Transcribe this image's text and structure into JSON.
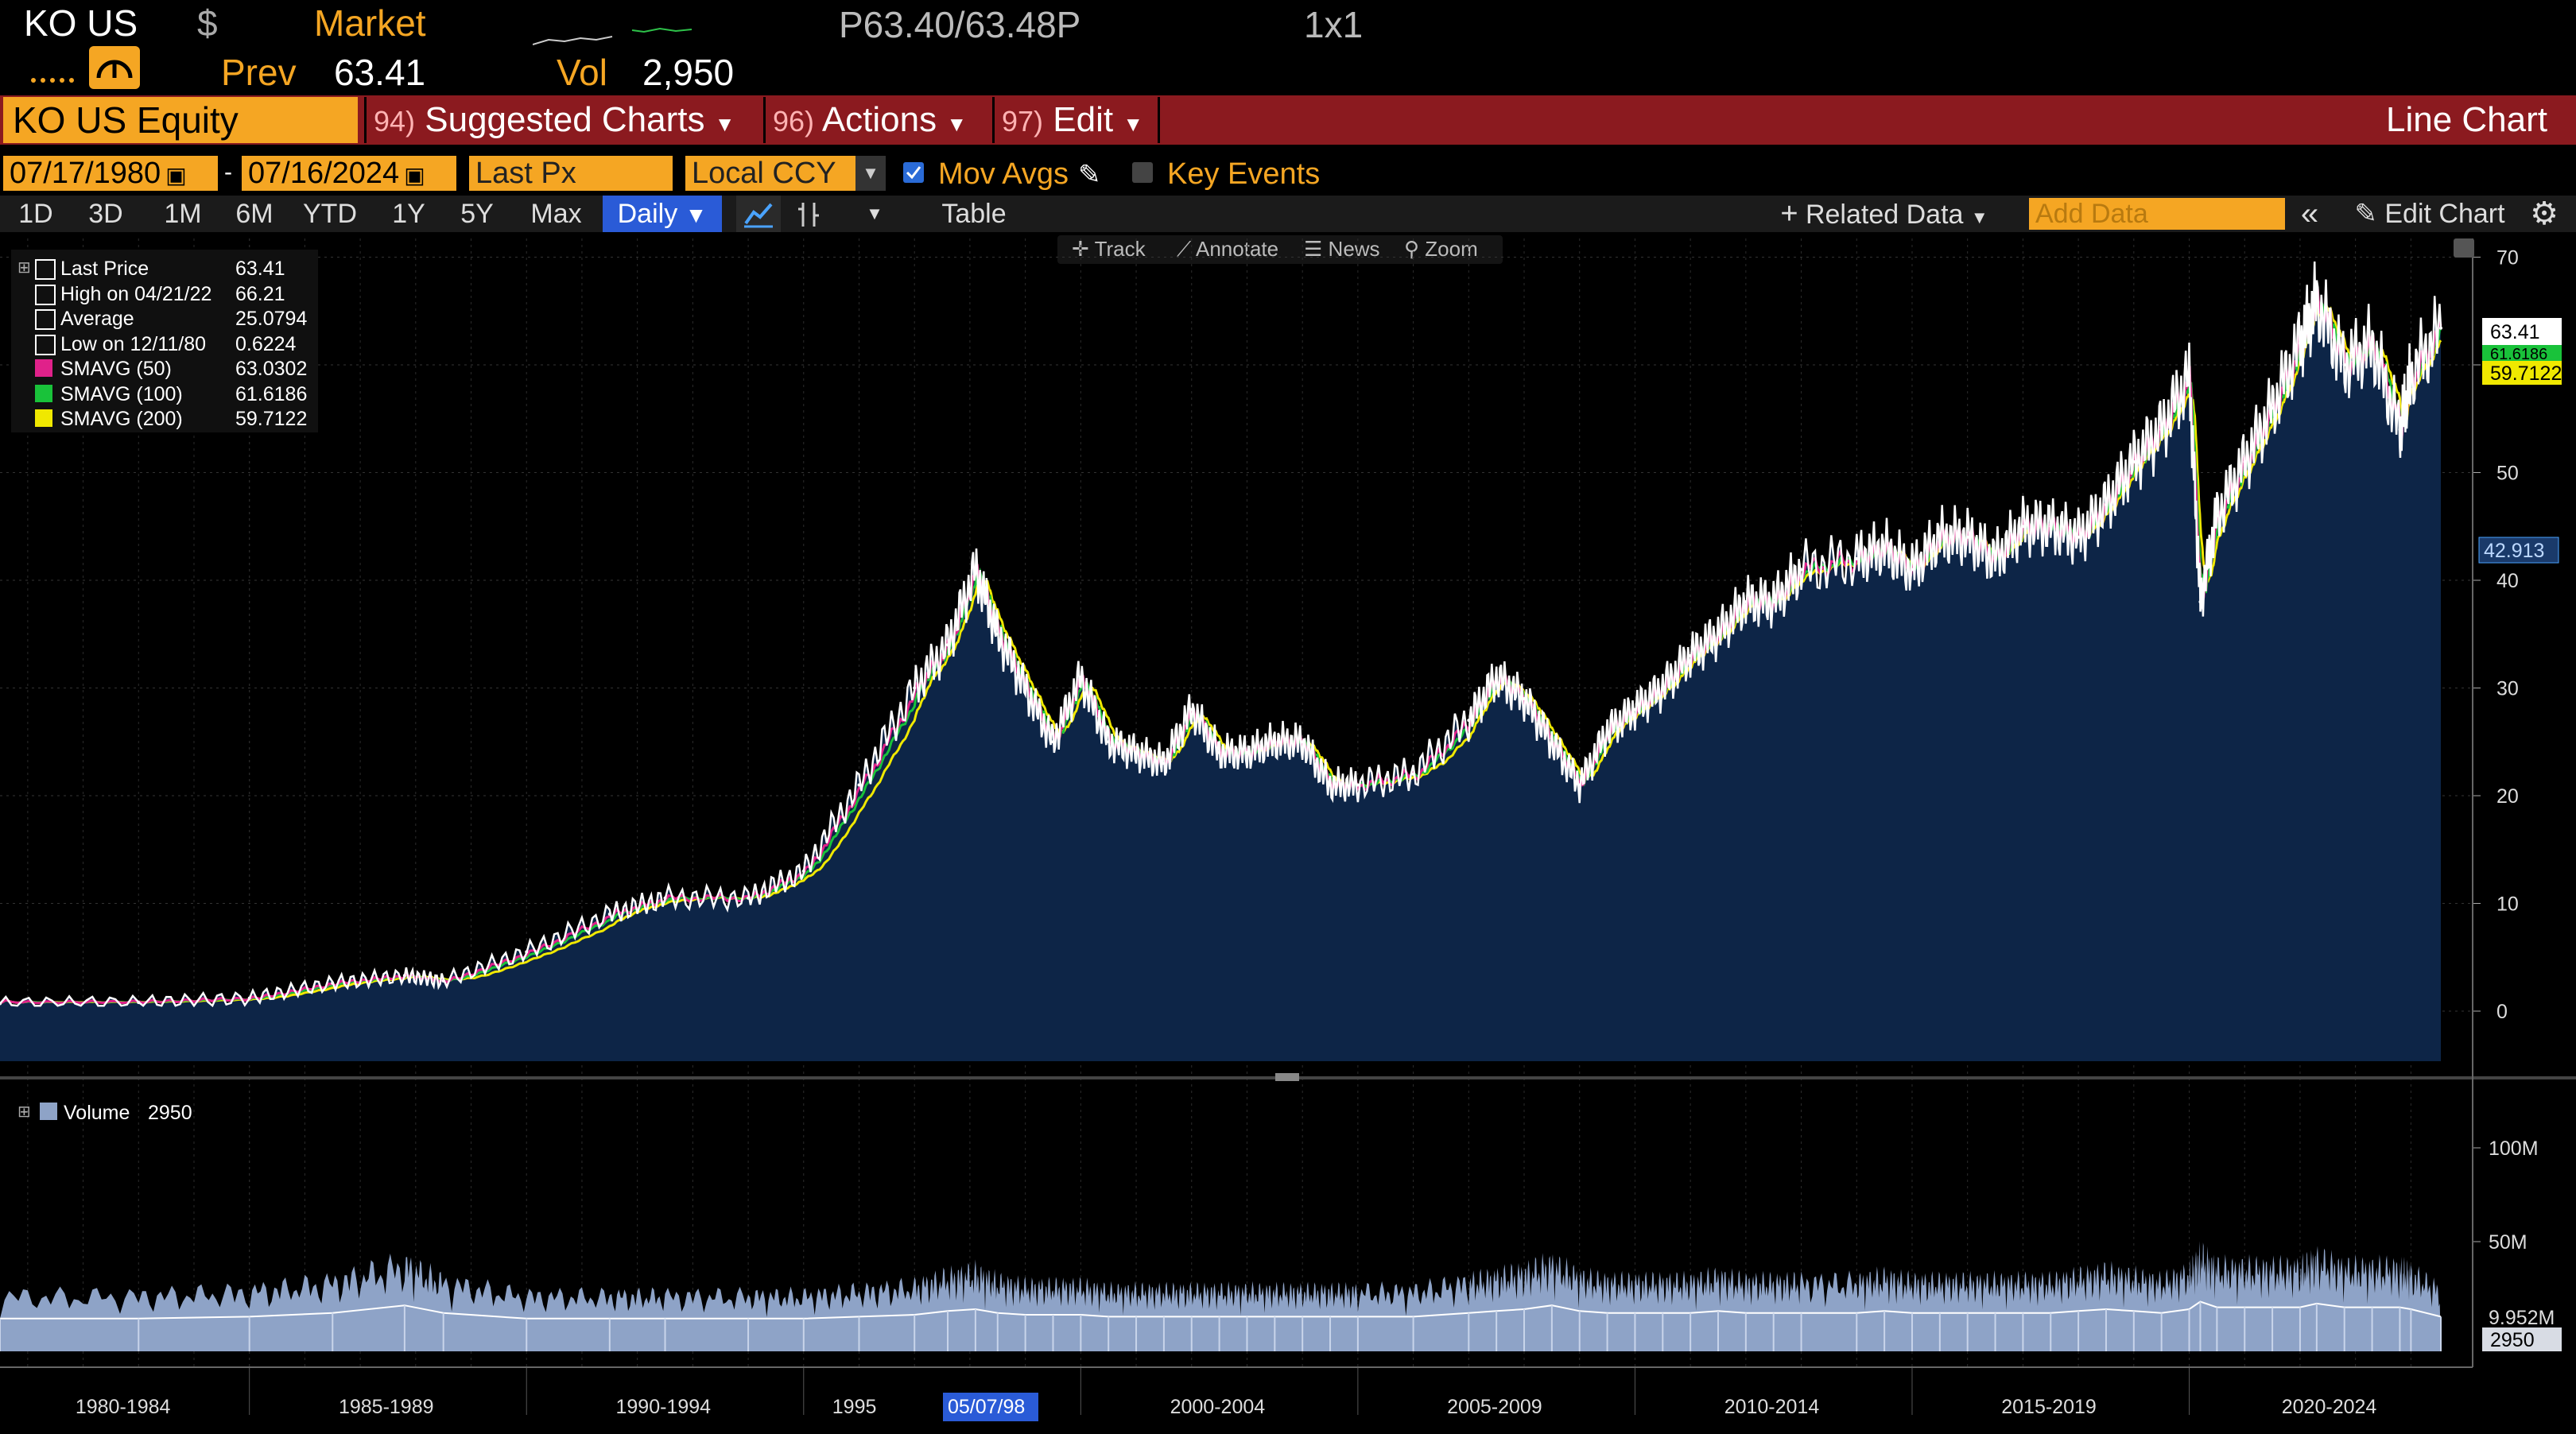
{
  "header": {
    "ticker": "KO US",
    "currency": "$",
    "market_label": "Market",
    "bid_ask": "P63.40/63.48P",
    "size": "1x1",
    "prev_label": "Prev",
    "prev_value": "63.41",
    "vol_label": "Vol",
    "vol_value": "2,950"
  },
  "command_bar": {
    "security": "KO US Equity",
    "suggested_num": "94)",
    "suggested_label": "Suggested Charts",
    "actions_num": "96)",
    "actions_label": "Actions",
    "edit_num": "97)",
    "edit_label": "Edit",
    "chart_type": "Line Chart"
  },
  "controls": {
    "start_date": "07/17/1980",
    "dash": "-",
    "end_date": "07/16/2024",
    "field": "Last Px",
    "currency": "Local CCY",
    "mov_avgs_label": "Mov Avgs",
    "mov_avgs_checked": true,
    "key_events_label": "Key Events",
    "key_events_checked": false
  },
  "range_buttons": [
    "1D",
    "3D",
    "1M",
    "6M",
    "YTD",
    "1Y",
    "5Y",
    "Max"
  ],
  "frequency": "Daily",
  "table_label": "Table",
  "related_data_label": "Related Data",
  "add_data_placeholder": "Add Data",
  "edit_chart_label": "Edit Chart",
  "chart_tools": [
    "Track",
    "Annotate",
    "News",
    "Zoom"
  ],
  "legend": [
    {
      "label": "Last Price",
      "value": "63.41",
      "color": "#ffffff"
    },
    {
      "label": "High on 04/21/22",
      "value": "66.21",
      "color": "#ffffff"
    },
    {
      "label": "Average",
      "value": "25.0794",
      "color": "#ffffff"
    },
    {
      "label": "Low on 12/11/80",
      "value": "0.6224",
      "color": "#ffffff"
    },
    {
      "label": "SMAVG (50)",
      "value": "63.0302",
      "color": "#e0218a"
    },
    {
      "label": "SMAVG (100)",
      "value": "61.6186",
      "color": "#19c23a"
    },
    {
      "label": "SMAVG (200)",
      "value": "59.7122",
      "color": "#f0e800"
    }
  ],
  "volume_legend": {
    "label": "Volume",
    "value": "2950",
    "color": "#8ea3c7"
  },
  "price_axis": {
    "ticks": [
      "70",
      "60",
      "50",
      "40",
      "30",
      "20",
      "10",
      "0"
    ]
  },
  "volume_axis": {
    "ticks": [
      "100M",
      "50M"
    ]
  },
  "right_tags": {
    "last_price": "63.41",
    "smavg100": "61.6186",
    "smavg200": "59.7122",
    "mid_label": "42.913",
    "volume_avg": "9.952M",
    "volume_last": "2950"
  },
  "periods": [
    "1980-1984",
    "1985-1989",
    "1990-1994",
    "1995",
    "2000-2004",
    "2005-2009",
    "2010-2014",
    "2015-2019",
    "2020-2024"
  ],
  "cursor_date": "05/07/98",
  "chart_data": {
    "type": "area",
    "title": "",
    "xlabel": "",
    "ylabel": "",
    "ylim": [
      -5,
      72
    ],
    "x": [
      1980.5,
      1983,
      1985,
      1986.5,
      1987.8,
      1988.5,
      1990,
      1991.5,
      1992.5,
      1994,
      1995,
      1996,
      1997,
      1997.6,
      1998.1,
      1998.5,
      1999,
      1999.5,
      2000,
      2000.5,
      2001,
      2001.5,
      2002,
      2002.5,
      2003,
      2003.5,
      2004,
      2004.5,
      2005,
      2006,
      2007,
      2007.5,
      2008,
      2008.5,
      2009,
      2009.5,
      2010,
      2010.5,
      2011,
      2011.5,
      2012,
      2012.5,
      2013,
      2014,
      2014.5,
      2015,
      2015.5,
      2016,
      2016.5,
      2017,
      2017.5,
      2018,
      2018.5,
      2019,
      2019.5,
      2020.0,
      2020.2,
      2020.5,
      2021,
      2021.5,
      2022.0,
      2022.3,
      2022.8,
      2023.3,
      2023.8,
      2024.0,
      2024.54
    ],
    "series": [
      {
        "name": "Last Price",
        "values": [
          0.7,
          0.8,
          1.2,
          2.6,
          3.3,
          2.8,
          5.5,
          9.0,
          10.5,
          10.5,
          13.0,
          21.0,
          30.0,
          34.0,
          41.0,
          35.0,
          30.0,
          25.0,
          31.0,
          25.0,
          24.0,
          23.0,
          28.0,
          24.0,
          24.0,
          25.0,
          25.0,
          21.0,
          21.0,
          22.0,
          27.0,
          31.0,
          29.0,
          25.0,
          21.0,
          26.0,
          28.0,
          30.0,
          33.0,
          35.0,
          38.0,
          38.0,
          41.0,
          42.0,
          43.0,
          41.0,
          44.0,
          44.0,
          42.0,
          45.0,
          45.0,
          44.0,
          47.0,
          51.0,
          54.0,
          59.0,
          38.0,
          46.0,
          51.0,
          56.0,
          62.0,
          66.0,
          60.0,
          62.0,
          54.0,
          59.0,
          63.41
        ]
      },
      {
        "name": "Volume",
        "note": "",
        "values": [
          9,
          9,
          10,
          12,
          16,
          12,
          9,
          9,
          9,
          9,
          9,
          10,
          11,
          13,
          14,
          12,
          11,
          11,
          11,
          10,
          10,
          10,
          10,
          10,
          10,
          10,
          10,
          10,
          10,
          10,
          12,
          13,
          14,
          16,
          13,
          12,
          12,
          12,
          12,
          13,
          12,
          12,
          12,
          12,
          13,
          12,
          12,
          12,
          12,
          12,
          12,
          13,
          14,
          13,
          12,
          14,
          18,
          15,
          15,
          15,
          15,
          17,
          15,
          15,
          15,
          14,
          10
        ]
      }
    ]
  }
}
